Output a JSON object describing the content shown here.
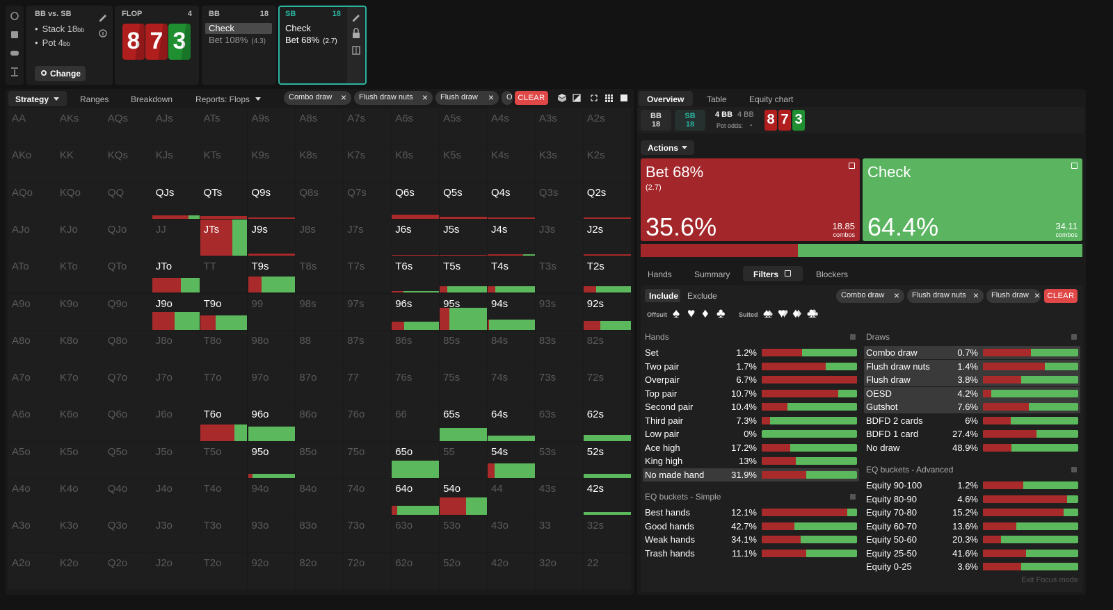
{
  "top": {
    "matchup": "BB vs. SB",
    "stack": "Stack 18",
    "stack_unit": "bb",
    "pot": "Pot 4",
    "pot_unit": "bb",
    "change": "Change",
    "flop": {
      "title": "FLOP",
      "count": "4",
      "cards": [
        {
          "rank": "8",
          "color": "#b01e1e"
        },
        {
          "rank": "7",
          "color": "#b01e1e"
        },
        {
          "rank": "3",
          "color": "#1f8f31"
        }
      ]
    },
    "bb": {
      "title": "BB",
      "stack": "18",
      "check": "Check",
      "bet": "Bet 108%",
      "size": "(4.3)"
    },
    "sb": {
      "title": "SB",
      "stack": "18",
      "check": "Check",
      "bet": "Bet 68%",
      "size": "(2.7)"
    }
  },
  "toolbar": {
    "tabs": [
      "Strategy",
      "Ranges",
      "Breakdown",
      "Reports: Flops"
    ],
    "chips": [
      "Combo draw",
      "Flush draw nuts",
      "Flush draw",
      "O"
    ],
    "clear": "CLEAR"
  },
  "grid": {
    "rows": [
      [
        "AA",
        "AKs",
        "AQs",
        "AJs",
        "ATs",
        "A9s",
        "A8s",
        "A7s",
        "A6s",
        "A5s",
        "A4s",
        "A3s",
        "A2s"
      ],
      [
        "AKo",
        "KK",
        "KQs",
        "KJs",
        "KTs",
        "K9s",
        "K8s",
        "K7s",
        "K6s",
        "K5s",
        "K4s",
        "K3s",
        "K2s"
      ],
      [
        "AQo",
        "KQo",
        "QQ",
        {
          "hand": "QJs",
          "bet": 7,
          "check": 2
        },
        {
          "hand": "QTs",
          "bet": 7,
          "check": 0
        },
        {
          "hand": "Q9s",
          "bet": 4,
          "check": 0
        },
        "Q8s",
        "Q7s",
        {
          "hand": "Q6s",
          "bet": 11,
          "check": 0
        },
        {
          "hand": "Q5s",
          "bet": 6,
          "check": 0
        },
        {
          "hand": "Q4s",
          "bet": 3,
          "check": 0
        },
        "Q3s",
        {
          "hand": "Q2s",
          "bet": 4,
          "check": 0
        }
      ],
      [
        "AJo",
        "KJo",
        "QJo",
        "JJ",
        {
          "hand": "JTs",
          "bet": 68,
          "check": 32
        },
        {
          "hand": "J9s",
          "bet": 7,
          "check": 0
        },
        "J8s",
        "J7s",
        {
          "hand": "J6s",
          "bet": 3,
          "check": 0
        },
        {
          "hand": "J5s",
          "bet": 3,
          "check": 0
        },
        {
          "hand": "J4s",
          "bet": 3,
          "check": 1
        },
        "J3s",
        {
          "hand": "J2s",
          "bet": 5,
          "check": 0
        }
      ],
      [
        "ATo",
        "KTo",
        "QTo",
        {
          "hand": "JTo",
          "bet": 25,
          "check": 16
        },
        "TT",
        {
          "hand": "T9s",
          "bet": 13,
          "check": 32
        },
        "T8s",
        "T7s",
        {
          "hand": "T6s",
          "bet": 1,
          "check": 3
        },
        {
          "hand": "T5s",
          "bet": 3,
          "check": 16
        },
        {
          "hand": "T4s",
          "bet": 3,
          "check": 16
        },
        "T3s",
        {
          "hand": "T2s",
          "bet": 5,
          "check": 14
        }
      ],
      [
        "A9o",
        "K9o",
        "Q9o",
        {
          "hand": "J9o",
          "bet": 24,
          "check": 26
        },
        {
          "hand": "T9o",
          "bet": 13,
          "check": 27
        },
        "99",
        "98s",
        "97s",
        {
          "hand": "96s",
          "bet": 6,
          "check": 17
        },
        {
          "hand": "95s",
          "bet": 12,
          "check": 48
        },
        {
          "hand": "94s",
          "bet": 1,
          "check": 27
        },
        "93s",
        {
          "hand": "92s",
          "bet": 9,
          "check": 16
        }
      ],
      [
        "A8o",
        "K8o",
        "Q8o",
        "J8o",
        "T8o",
        "98o",
        "88",
        "87s",
        "86s",
        "85s",
        "84s",
        "83s",
        "82s"
      ],
      [
        "A7o",
        "K7o",
        "Q7o",
        "J7o",
        "T7o",
        "97o",
        "87o",
        "77",
        "76s",
        "75s",
        "74s",
        "73s",
        "72s"
      ],
      [
        "A6o",
        "K6o",
        "Q6o",
        "J6o",
        {
          "hand": "T6o",
          "bet": 33,
          "check": 12
        },
        {
          "hand": "96o",
          "bet": 0,
          "check": 40
        },
        "86o",
        "76o",
        "66",
        {
          "hand": "65s",
          "bet": 0,
          "check": 36
        },
        {
          "hand": "64s",
          "bet": 0,
          "check": 15
        },
        "63s",
        {
          "hand": "62s",
          "bet": 0,
          "check": 17
        }
      ],
      [
        "A5o",
        "K5o",
        "Q5o",
        "J5o",
        "T5o",
        {
          "hand": "95o",
          "bet": 1,
          "check": 10
        },
        "85o",
        "75o",
        {
          "hand": "65o",
          "bet": 0,
          "check": 47
        },
        "55",
        {
          "hand": "54s",
          "bet": 6,
          "check": 34
        },
        "53s",
        {
          "hand": "52s",
          "bet": 0,
          "check": 11
        }
      ],
      [
        "A4o",
        "K4o",
        "Q4o",
        "J4o",
        "T4o",
        "94o",
        "84o",
        "74o",
        {
          "hand": "64o",
          "bet": 3,
          "check": 23
        },
        {
          "hand": "54o",
          "bet": 27,
          "check": 22
        },
        "44",
        "43s",
        {
          "hand": "42s",
          "bet": 0,
          "check": 8
        }
      ],
      [
        "A3o",
        "K3o",
        "Q3o",
        "J3o",
        "T3o",
        "93o",
        "83o",
        "73o",
        "63o",
        "53o",
        "43o",
        "33",
        "32s"
      ],
      [
        "A2o",
        "K2o",
        "Q2o",
        "J2o",
        "T2o",
        "92o",
        "82o",
        "72o",
        "62o",
        "52o",
        "42o",
        "32o",
        "22"
      ]
    ]
  },
  "right": {
    "tabs": [
      "Overview",
      "Table",
      "Equity chart"
    ],
    "info": {
      "bb": {
        "title": "BB",
        "stack": "18"
      },
      "sb": {
        "title": "SB",
        "stack": "18"
      },
      "pot": "4 BB",
      "pot_total": "4 BB",
      "pot_odds_label": "Pot odds:",
      "pot_odds": "-"
    },
    "actions_menu": "Actions",
    "actions": [
      {
        "name": "Bet 68%",
        "size": "(2.7)",
        "frequency": {
          "value": 35.6,
          "label": "35.6%"
        },
        "combos": "18.85",
        "combos_label": "combos",
        "color": "#a3262a"
      },
      {
        "name": "Check",
        "frequency": {
          "value": 64.4,
          "label": "64.4%"
        },
        "combos": "34.11",
        "combos_label": "combos",
        "color": "#5bb560"
      }
    ],
    "subtabs": [
      "Hands",
      "Summary",
      "Filters",
      "Blockers"
    ],
    "filters": {
      "include": "Include",
      "exclude": "Exclude",
      "chips": [
        "Combo draw",
        "Flush draw nuts",
        "Flush draw"
      ],
      "clear": "CLEAR",
      "offsuit": "Offsuit",
      "offsuit_suits": [
        "♠",
        "♥",
        "♦",
        "♣"
      ],
      "suited": "Suited",
      "suited_suits": [
        "♠",
        "♥",
        "♦",
        "♣"
      ],
      "sections": [
        {
          "title": "Hands",
          "rows": [
            {
              "name": "Set",
              "share": "1.2%",
              "bet": 42
            },
            {
              "name": "Two pair",
              "share": "1.7%",
              "bet": 67
            },
            {
              "name": "Overpair",
              "share": "6.7%",
              "bet": 100
            },
            {
              "name": "Top pair",
              "share": "10.7%",
              "bet": 80
            },
            {
              "name": "Second pair",
              "share": "10.4%",
              "bet": 27
            },
            {
              "name": "Third pair",
              "share": "7.3%",
              "bet": 9
            },
            {
              "name": "Low pair",
              "share": "0%",
              "bet": 0
            },
            {
              "name": "Ace high",
              "share": "17.2%",
              "bet": 30
            },
            {
              "name": "King high",
              "share": "13%",
              "bet": 36
            },
            {
              "name": "No made hand",
              "share": "31.9%",
              "bet": 47,
              "selected": true
            }
          ]
        },
        {
          "title": "EQ buckets - Simple",
          "rows": [
            {
              "name": "Best hands",
              "share": "12.1%",
              "bet": 90
            },
            {
              "name": "Good hands",
              "share": "42.7%",
              "bet": 34
            },
            {
              "name": "Weak hands",
              "share": "34.1%",
              "bet": 41
            },
            {
              "name": "Trash hands",
              "share": "11.1%",
              "bet": 47
            }
          ]
        },
        {
          "title": "Draws",
          "rows": [
            {
              "name": "Combo draw",
              "share": "0.7%",
              "bet": 50,
              "selected": true
            },
            {
              "name": "Flush draw nuts",
              "share": "1.4%",
              "bet": 65,
              "selected": true
            },
            {
              "name": "Flush draw",
              "share": "3.8%",
              "bet": 40,
              "selected": true
            },
            {
              "name": "OESD",
              "share": "4.2%",
              "bet": 9,
              "selected": true
            },
            {
              "name": "Gutshot",
              "share": "7.6%",
              "bet": 48,
              "selected": true
            },
            {
              "name": "BDFD 2 cards",
              "share": "6%",
              "bet": 29
            },
            {
              "name": "BDFD 1 card",
              "share": "27.4%",
              "bet": 56
            },
            {
              "name": "No draw",
              "share": "48.9%",
              "bet": 30
            }
          ]
        },
        {
          "title": "EQ buckets - Advanced",
          "rows": [
            {
              "name": "Equity 90-100",
              "share": "1.2%",
              "bet": 42
            },
            {
              "name": "Equity 80-90",
              "share": "4.6%",
              "bet": 88
            },
            {
              "name": "Equity 70-80",
              "share": "15.2%",
              "bet": 85
            },
            {
              "name": "Equity 60-70",
              "share": "13.6%",
              "bet": 35
            },
            {
              "name": "Equity 50-60",
              "share": "20.3%",
              "bet": 19
            },
            {
              "name": "Equity 25-50",
              "share": "41.6%",
              "bet": 45
            },
            {
              "name": "Equity 0-25",
              "share": "3.6%",
              "bet": 40
            }
          ]
        }
      ]
    },
    "exit": "Exit Focus mode"
  }
}
